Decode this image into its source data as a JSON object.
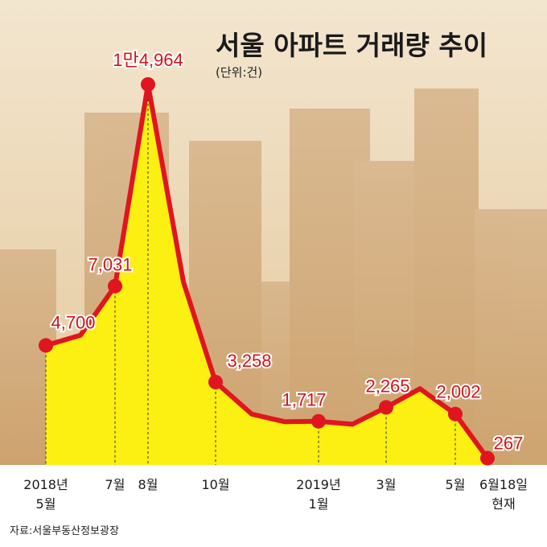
{
  "title": "서울 아파트 거래량 추이",
  "unit": "(단위:건)",
  "source": "자료:서울부동산정보광장",
  "colors": {
    "line": "#e0151f",
    "fill": "#fcef12",
    "label": "#d3121b",
    "background": "#ecdcc2"
  },
  "chart_data": {
    "type": "area",
    "title": "서울 아파트 거래량 추이",
    "ylabel": "(단위:건)",
    "ylim": [
      0,
      15500
    ],
    "grid": false,
    "points": [
      {
        "label": "2018년 5월",
        "value": 4700,
        "data_label": "4,700"
      },
      {
        "label": "",
        "value": 5100
      },
      {
        "label": "7월",
        "value": 7031,
        "data_label": "7,031"
      },
      {
        "label": "8월",
        "value": 14964,
        "data_label": "1만4,964"
      },
      {
        "label": "",
        "value": 7200
      },
      {
        "label": "10월",
        "value": 3258,
        "data_label": "3,258"
      },
      {
        "label": "",
        "value": 2000
      },
      {
        "label": "",
        "value": 1700
      },
      {
        "label": "2019년 1월",
        "value": 1717,
        "data_label": "1,717"
      },
      {
        "label": "",
        "value": 1600
      },
      {
        "label": "3월",
        "value": 2265,
        "data_label": "2,265"
      },
      {
        "label": "",
        "value": 3000
      },
      {
        "label": "5월",
        "value": 2002,
        "data_label": "2,002"
      },
      {
        "label": "6월18일 현재",
        "value": 267,
        "data_label": "267"
      }
    ]
  }
}
